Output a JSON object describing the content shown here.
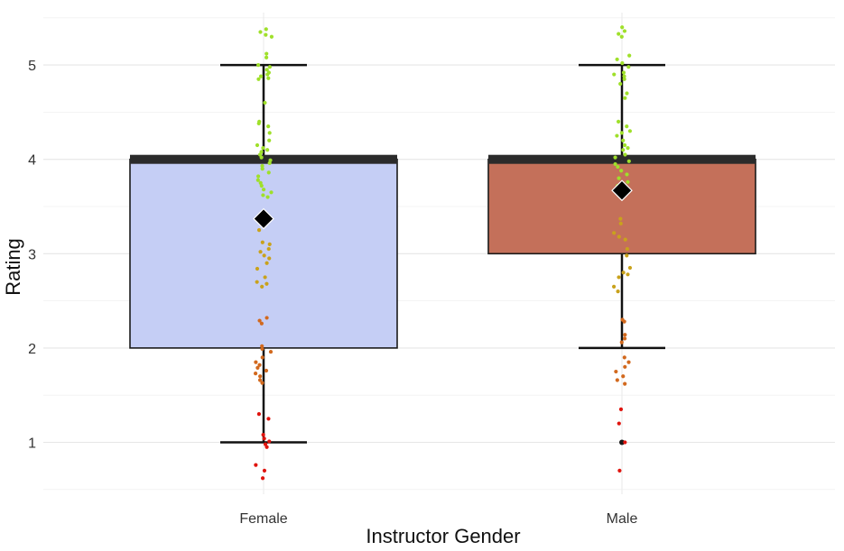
{
  "chart_data": {
    "type": "box",
    "title": "",
    "xlabel": "Instructor Gender",
    "ylabel": "Rating",
    "ylim": [
      0.55,
      5.5
    ],
    "yticks": [
      1,
      2,
      3,
      4,
      5
    ],
    "grid": true,
    "categories": [
      "Female",
      "Male"
    ],
    "boxes": [
      {
        "category": "Female",
        "fill": "#c5cef5",
        "whisker_low": 1,
        "q1": 2,
        "median": 4,
        "q3": 4,
        "whisker_high": 5,
        "mean": 3.37,
        "outliers": []
      },
      {
        "category": "Male",
        "fill": "#c4705a",
        "whisker_low": 2,
        "q1": 3,
        "median": 4,
        "q3": 4,
        "whisker_high": 5,
        "mean": 3.67,
        "outliers": [
          1
        ]
      }
    ],
    "jitter_color_scale": [
      {
        "from": 0.5,
        "to": 1.5,
        "color": "#e0140e"
      },
      {
        "from": 1.5,
        "to": 2.5,
        "color": "#d2691e"
      },
      {
        "from": 2.5,
        "to": 3.5,
        "color": "#c9a21c"
      },
      {
        "from": 3.5,
        "to": 6.0,
        "color": "#9fe02a"
      }
    ],
    "jitter_points": [
      {
        "category": "Female",
        "ratings": [
          5.38,
          5.35,
          5.32,
          5.3,
          5.12,
          5.08,
          5.0,
          4.98,
          4.95,
          4.92,
          4.9,
          4.88,
          4.86,
          4.85,
          4.6,
          4.4,
          4.38,
          4.35,
          4.28,
          4.2,
          4.15,
          4.12,
          4.1,
          4.08,
          4.05,
          4.02,
          3.99,
          3.96,
          3.93,
          3.9,
          3.86,
          3.82,
          3.78,
          3.75,
          3.72,
          3.68,
          3.65,
          3.62,
          3.6,
          3.25,
          3.12,
          3.1,
          3.05,
          3.02,
          2.98,
          2.95,
          2.9,
          2.84,
          2.75,
          2.7,
          2.68,
          2.65,
          2.32,
          2.29,
          2.26,
          2.02,
          1.99,
          1.96,
          1.9,
          1.85,
          1.82,
          1.79,
          1.76,
          1.73,
          1.7,
          1.66,
          1.63,
          1.3,
          1.25,
          1.08,
          1.04,
          1.01,
          0.98,
          0.95,
          0.76,
          0.7,
          0.62
        ]
      },
      {
        "category": "Male",
        "ratings": [
          5.4,
          5.36,
          5.33,
          5.3,
          5.1,
          5.06,
          5.02,
          4.98,
          4.92,
          4.9,
          4.88,
          4.85,
          4.8,
          4.7,
          4.65,
          4.4,
          4.35,
          4.3,
          4.28,
          4.25,
          4.2,
          4.15,
          4.12,
          4.1,
          4.05,
          4.02,
          3.98,
          3.95,
          3.92,
          3.88,
          3.84,
          3.8,
          3.76,
          3.72,
          3.68,
          3.37,
          3.32,
          3.22,
          3.18,
          3.15,
          3.05,
          2.98,
          2.85,
          2.8,
          2.78,
          2.75,
          2.65,
          2.6,
          2.3,
          2.28,
          2.14,
          2.1,
          2.06,
          1.9,
          1.85,
          1.8,
          1.75,
          1.7,
          1.66,
          1.62,
          1.35,
          1.2,
          1.0,
          0.7
        ]
      }
    ]
  }
}
